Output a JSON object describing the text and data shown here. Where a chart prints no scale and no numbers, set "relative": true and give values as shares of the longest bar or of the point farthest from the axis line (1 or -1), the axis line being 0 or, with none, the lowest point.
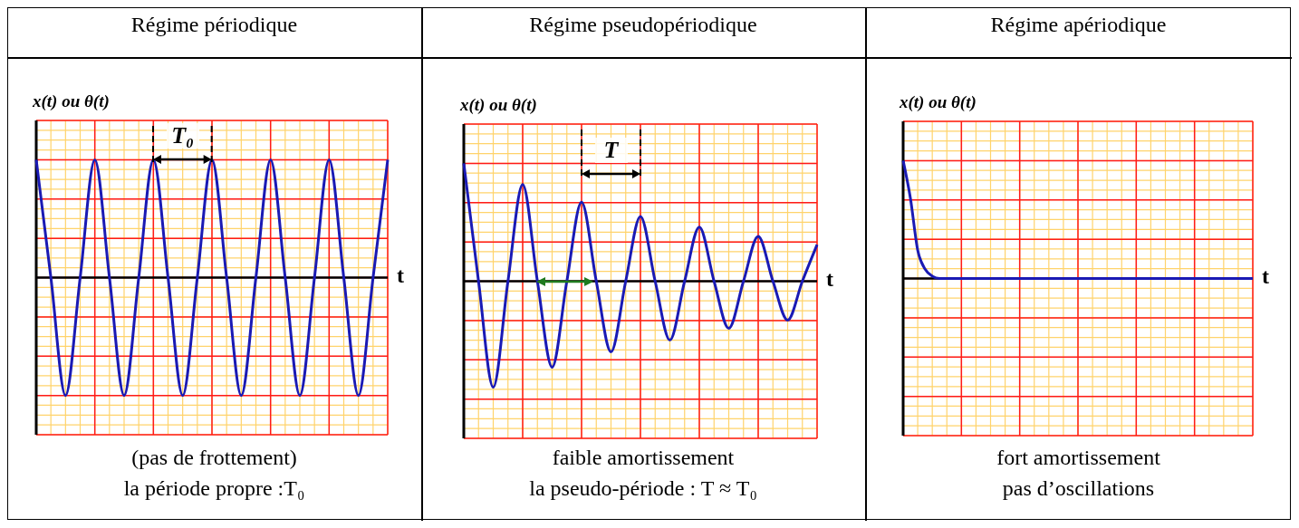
{
  "chart_data": [
    {
      "type": "line",
      "title": "Régime périodique",
      "ylabel": "x(t) ou θ(t)",
      "xlabel": "t",
      "relative": true,
      "grid": true,
      "tick_labels": false,
      "color": "#1a1ab4",
      "categories": [
        null,
        null,
        null,
        null,
        null,
        null,
        null,
        null,
        null,
        null,
        null,
        null,
        null,
        null,
        null,
        null,
        null,
        null,
        null,
        null,
        null,
        null,
        null,
        null,
        null
      ],
      "values": [
        1,
        0,
        -1,
        0,
        1,
        0,
        -1,
        0,
        1,
        0,
        -1,
        0,
        1,
        0,
        -1,
        0,
        1,
        0,
        -1,
        0,
        1,
        0,
        -1,
        0,
        1
      ],
      "annotations": [
        "T₀",
        "(pas de frottement)",
        "la période propre :T₀"
      ]
    },
    {
      "type": "line",
      "title": "Régime pseudopériodique",
      "ylabel": "x(t) ou θ(t)",
      "xlabel": "t",
      "relative": true,
      "grid": true,
      "tick_labels": false,
      "color": "#1a1ab4",
      "categories": [
        null,
        null,
        null,
        null,
        null,
        null,
        null,
        null,
        null,
        null,
        null,
        null,
        null,
        null,
        null,
        null,
        null,
        null,
        null,
        null,
        null,
        null,
        null,
        null,
        null
      ],
      "values": [
        1,
        0,
        -0.9,
        0,
        0.82,
        0,
        -0.73,
        0,
        0.67,
        0,
        -0.6,
        0,
        0.55,
        0,
        -0.5,
        0,
        0.46,
        0,
        -0.4,
        0,
        0.38,
        0,
        -0.33,
        0,
        0.31
      ],
      "annotations": [
        "T",
        "faible amortissement",
        "la pseudo-période : T ≈ T₀"
      ]
    },
    {
      "type": "line",
      "title": "Régime apériodique",
      "ylabel": "x(t) ou θ(t)",
      "xlabel": "t",
      "relative": true,
      "grid": true,
      "tick_labels": false,
      "color": "#1a1ab4",
      "categories": [
        null,
        null,
        null,
        null,
        null,
        null,
        null,
        null,
        null,
        null,
        null,
        null,
        null,
        null,
        null,
        null,
        null,
        null,
        null,
        null,
        null,
        null,
        null,
        null,
        null,
        null,
        null,
        null,
        null,
        null,
        null,
        null,
        null,
        null,
        null,
        null,
        null,
        null,
        null,
        null,
        null,
        null,
        null,
        null,
        null,
        null,
        null,
        null,
        null
      ],
      "values": [
        1,
        0.68,
        0.24,
        0.08,
        0.02,
        0,
        0,
        0,
        0,
        0,
        0,
        0,
        0,
        0,
        0,
        0,
        0,
        0,
        0,
        0,
        0,
        0,
        0,
        0,
        0,
        0,
        0,
        0,
        0,
        0,
        0,
        0,
        0,
        0,
        0,
        0,
        0,
        0,
        0,
        0,
        0,
        0,
        0,
        0,
        0,
        0,
        0,
        0,
        0
      ],
      "annotations": [
        "fort amortissement",
        "pas d’oscillations"
      ]
    }
  ]
}
